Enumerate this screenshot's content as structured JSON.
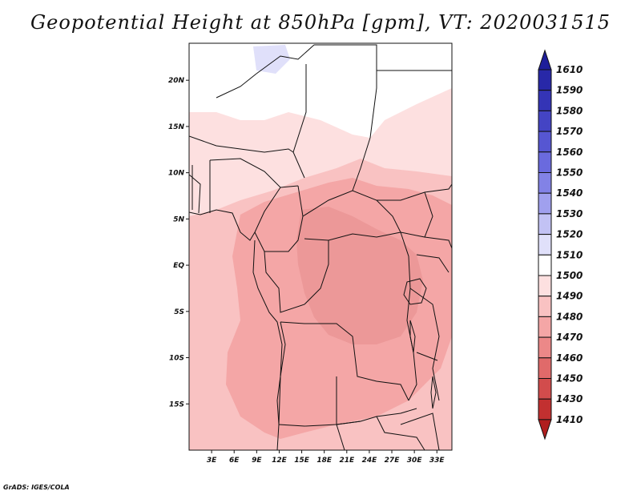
{
  "title": "Geopotential Height at 850hPa [gpm], VT: 2020031515",
  "footer": "GrADS: IGES/COLA",
  "chart_data": {
    "type": "heatmap",
    "title": "Geopotential Height at 850hPa [gpm], VT: 2020031515",
    "variable": "Geopotential Height",
    "level": "850hPa",
    "units": "gpm",
    "valid_time": "2020031515",
    "region": "Central and Southern-Central Africa",
    "xlim": [
      0,
      35
    ],
    "ylim": [
      -20,
      24
    ],
    "x_ticks": [
      {
        "value": 3,
        "label": "3E"
      },
      {
        "value": 6,
        "label": "6E"
      },
      {
        "value": 9,
        "label": "9E"
      },
      {
        "value": 12,
        "label": "12E"
      },
      {
        "value": 15,
        "label": "15E"
      },
      {
        "value": 18,
        "label": "18E"
      },
      {
        "value": 21,
        "label": "21E"
      },
      {
        "value": 24,
        "label": "24E"
      },
      {
        "value": 27,
        "label": "27E"
      },
      {
        "value": 30,
        "label": "30E"
      },
      {
        "value": 33,
        "label": "33E"
      }
    ],
    "y_ticks": [
      {
        "value": 20,
        "label": "20N"
      },
      {
        "value": 15,
        "label": "15N"
      },
      {
        "value": 10,
        "label": "10N"
      },
      {
        "value": 5,
        "label": "5N"
      },
      {
        "value": 0,
        "label": "EQ"
      },
      {
        "value": -5,
        "label": "5S"
      },
      {
        "value": -10,
        "label": "10S"
      },
      {
        "value": -15,
        "label": "15S"
      }
    ],
    "colorbar": {
      "levels": [
        1610,
        1590,
        1580,
        1570,
        1560,
        1550,
        1540,
        1530,
        1520,
        1510,
        1500,
        1490,
        1480,
        1470,
        1460,
        1450,
        1430,
        1410
      ],
      "colors": [
        "#1e1e9a",
        "#2828a8",
        "#3434b6",
        "#4444c4",
        "#5656d2",
        "#6a6ade",
        "#8282e6",
        "#a0a0ee",
        "#c2c2f4",
        "#e0e0fa",
        "#ffffff",
        "#fde0e0",
        "#f9c2c2",
        "#f4a6a6",
        "#ec8888",
        "#e06a6a",
        "#d24c4c",
        "#c23030",
        "#b01e1e"
      ]
    },
    "field_regions": [
      {
        "value_range": [
          1500,
          1510
        ],
        "area": "Sahara north of ~14N"
      },
      {
        "value_range": [
          1510,
          1520
        ],
        "area": "small pocket near 10E, 24N"
      },
      {
        "value_range": [
          1490,
          1500
        ],
        "area": "Sahel, west coast and far south"
      },
      {
        "value_range": [
          1480,
          1490
        ],
        "area": "Gulf of Guinea, Angola, East Africa"
      },
      {
        "value_range": [
          1470,
          1480
        ],
        "area": "Congo Basin, central Angola, Zambia"
      }
    ]
  }
}
